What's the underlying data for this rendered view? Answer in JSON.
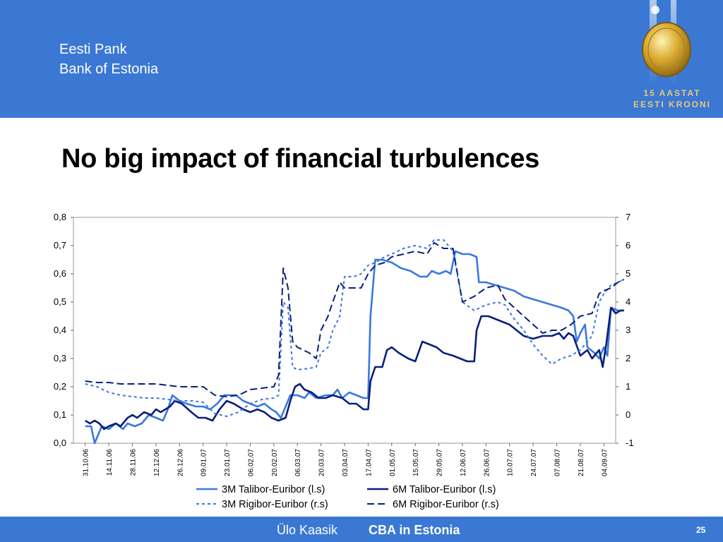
{
  "header": {
    "bank_name_et": "Eesti Pank",
    "bank_name_en": "Bank of Estonia",
    "logo_line1": "15 AASTAT",
    "logo_line2": "EESTI KROONI",
    "background_color": "#3a78d4"
  },
  "slide_title": "No big impact of financial turbulences",
  "footer": {
    "author": "Ülo Kaasik",
    "presentation_title": "CBA in Estonia",
    "page_number": "25"
  },
  "chart_data": {
    "type": "line",
    "title": "",
    "xlabel": "",
    "ylabel_left": "",
    "ylabel_right": "",
    "y_left_lim": [
      0.0,
      0.8
    ],
    "y_left_ticks": [
      "0,0",
      "0,1",
      "0,2",
      "0,3",
      "0,4",
      "0,5",
      "0,6",
      "0,7",
      "0,8"
    ],
    "y_right_lim": [
      -1,
      7
    ],
    "y_right_ticks": [
      "-1",
      "0",
      "1",
      "2",
      "3",
      "4",
      "5",
      "6",
      "7"
    ],
    "x_tick_labels": [
      "31.10.06",
      "14.11.06",
      "28.11.06",
      "12.12.06",
      "26.12.06",
      "09.01.07",
      "23.01.07",
      "06.02.07",
      "20.02.07",
      "06.03.07",
      "20.03.07",
      "03.04.07",
      "17.04.07",
      "01.05.07",
      "15.05.07",
      "29.05.07",
      "12.06.07",
      "26.06.07",
      "10.07.07",
      "24.07.07",
      "07.08.07",
      "21.08.07",
      "04.09.07"
    ],
    "grid": false,
    "legend_position": "bottom",
    "series": [
      {
        "name": "3M Talibor-Euribor (l.s)",
        "axis": "left",
        "color": "#3a78e0",
        "style": "solid",
        "points": [
          [
            0,
            0.06
          ],
          [
            0.25,
            0.06
          ],
          [
            0.4,
            0.0
          ],
          [
            0.7,
            0.06
          ],
          [
            1,
            0.05
          ],
          [
            1.3,
            0.07
          ],
          [
            1.6,
            0.05
          ],
          [
            1.8,
            0.07
          ],
          [
            2.1,
            0.06
          ],
          [
            2.4,
            0.07
          ],
          [
            2.7,
            0.1
          ],
          [
            3,
            0.09
          ],
          [
            3.3,
            0.08
          ],
          [
            3.5,
            0.12
          ],
          [
            3.7,
            0.17
          ],
          [
            4,
            0.15
          ],
          [
            4.3,
            0.14
          ],
          [
            4.7,
            0.13
          ],
          [
            5,
            0.13
          ],
          [
            5.3,
            0.12
          ],
          [
            5.6,
            0.14
          ],
          [
            5.9,
            0.17
          ],
          [
            6.1,
            0.17
          ],
          [
            6.4,
            0.17
          ],
          [
            6.7,
            0.15
          ],
          [
            7,
            0.14
          ],
          [
            7.3,
            0.13
          ],
          [
            7.6,
            0.14
          ],
          [
            7.9,
            0.12
          ],
          [
            8.1,
            0.11
          ],
          [
            8.3,
            0.09
          ],
          [
            8.5,
            0.13
          ],
          [
            8.7,
            0.17
          ],
          [
            9,
            0.17
          ],
          [
            9.3,
            0.16
          ],
          [
            9.5,
            0.18
          ],
          [
            9.8,
            0.16
          ],
          [
            10.2,
            0.17
          ],
          [
            10.5,
            0.17
          ],
          [
            10.7,
            0.19
          ],
          [
            10.9,
            0.16
          ],
          [
            11.2,
            0.18
          ],
          [
            11.5,
            0.17
          ],
          [
            11.8,
            0.16
          ],
          [
            12,
            0.16
          ],
          [
            12.1,
            0.45
          ],
          [
            12.3,
            0.65
          ],
          [
            12.6,
            0.65
          ],
          [
            13,
            0.64
          ],
          [
            13.4,
            0.62
          ],
          [
            13.8,
            0.61
          ],
          [
            14.2,
            0.59
          ],
          [
            14.5,
            0.59
          ],
          [
            14.7,
            0.61
          ],
          [
            15,
            0.6
          ],
          [
            15.3,
            0.61
          ],
          [
            15.5,
            0.6
          ],
          [
            15.7,
            0.68
          ],
          [
            16,
            0.67
          ],
          [
            16.3,
            0.67
          ],
          [
            16.6,
            0.66
          ],
          [
            16.7,
            0.57
          ],
          [
            17,
            0.57
          ],
          [
            17.4,
            0.56
          ],
          [
            17.8,
            0.55
          ],
          [
            18.2,
            0.54
          ],
          [
            18.6,
            0.52
          ],
          [
            19,
            0.51
          ],
          [
            19.4,
            0.5
          ],
          [
            19.8,
            0.49
          ],
          [
            20.2,
            0.48
          ],
          [
            20.5,
            0.47
          ],
          [
            20.7,
            0.45
          ],
          [
            20.85,
            0.36
          ],
          [
            21,
            0.39
          ],
          [
            21.2,
            0.42
          ],
          [
            21.3,
            0.34
          ],
          [
            21.6,
            0.32
          ],
          [
            21.8,
            0.3
          ],
          [
            22,
            0.34
          ],
          [
            22.15,
            0.31
          ],
          [
            22.3,
            0.48
          ],
          [
            22.6,
            0.47
          ],
          [
            22.85,
            0.47
          ]
        ]
      },
      {
        "name": "6M Talibor-Euribor (l.s)",
        "axis": "left",
        "color": "#0a1f7a",
        "style": "solid",
        "points": [
          [
            0,
            0.08
          ],
          [
            0.2,
            0.07
          ],
          [
            0.4,
            0.08
          ],
          [
            0.6,
            0.07
          ],
          [
            0.8,
            0.05
          ],
          [
            1,
            0.06
          ],
          [
            1.3,
            0.07
          ],
          [
            1.5,
            0.06
          ],
          [
            1.8,
            0.09
          ],
          [
            2,
            0.1
          ],
          [
            2.2,
            0.09
          ],
          [
            2.5,
            0.11
          ],
          [
            2.8,
            0.1
          ],
          [
            3,
            0.12
          ],
          [
            3.2,
            0.11
          ],
          [
            3.4,
            0.12
          ],
          [
            3.6,
            0.13
          ],
          [
            3.8,
            0.15
          ],
          [
            4.1,
            0.14
          ],
          [
            4.5,
            0.11
          ],
          [
            4.8,
            0.09
          ],
          [
            5.1,
            0.09
          ],
          [
            5.4,
            0.08
          ],
          [
            5.7,
            0.12
          ],
          [
            6,
            0.15
          ],
          [
            6.3,
            0.14
          ],
          [
            6.7,
            0.12
          ],
          [
            7,
            0.11
          ],
          [
            7.3,
            0.12
          ],
          [
            7.6,
            0.11
          ],
          [
            7.9,
            0.09
          ],
          [
            8.2,
            0.08
          ],
          [
            8.5,
            0.09
          ],
          [
            8.7,
            0.15
          ],
          [
            8.9,
            0.2
          ],
          [
            9.1,
            0.21
          ],
          [
            9.3,
            0.19
          ],
          [
            9.6,
            0.18
          ],
          [
            9.9,
            0.16
          ],
          [
            10.2,
            0.16
          ],
          [
            10.5,
            0.17
          ],
          [
            10.9,
            0.16
          ],
          [
            11.2,
            0.14
          ],
          [
            11.5,
            0.14
          ],
          [
            11.8,
            0.12
          ],
          [
            12,
            0.12
          ],
          [
            12.1,
            0.22
          ],
          [
            12.3,
            0.27
          ],
          [
            12.6,
            0.27
          ],
          [
            12.8,
            0.33
          ],
          [
            13,
            0.34
          ],
          [
            13.3,
            0.32
          ],
          [
            13.7,
            0.3
          ],
          [
            14,
            0.29
          ],
          [
            14.3,
            0.36
          ],
          [
            14.6,
            0.35
          ],
          [
            14.9,
            0.34
          ],
          [
            15.2,
            0.32
          ],
          [
            15.6,
            0.31
          ],
          [
            15.9,
            0.3
          ],
          [
            16.2,
            0.29
          ],
          [
            16.5,
            0.29
          ],
          [
            16.6,
            0.4
          ],
          [
            16.8,
            0.45
          ],
          [
            17.1,
            0.45
          ],
          [
            17.4,
            0.44
          ],
          [
            17.7,
            0.43
          ],
          [
            18,
            0.42
          ],
          [
            18.3,
            0.4
          ],
          [
            18.6,
            0.38
          ],
          [
            19,
            0.37
          ],
          [
            19.4,
            0.38
          ],
          [
            19.8,
            0.38
          ],
          [
            20.1,
            0.39
          ],
          [
            20.3,
            0.37
          ],
          [
            20.5,
            0.39
          ],
          [
            20.7,
            0.38
          ],
          [
            21,
            0.31
          ],
          [
            21.3,
            0.33
          ],
          [
            21.5,
            0.3
          ],
          [
            21.8,
            0.33
          ],
          [
            21.95,
            0.27
          ],
          [
            22.1,
            0.35
          ],
          [
            22.3,
            0.48
          ],
          [
            22.5,
            0.46
          ],
          [
            22.7,
            0.47
          ],
          [
            22.85,
            0.47
          ]
        ]
      },
      {
        "name": "3M Rigibor-Euribor (r.s)",
        "axis": "right",
        "color": "#3a78e0",
        "style": "dotted",
        "points": [
          [
            0,
            1.1
          ],
          [
            0.5,
            1.0
          ],
          [
            1,
            0.8
          ],
          [
            1.5,
            0.7
          ],
          [
            2,
            0.65
          ],
          [
            2.5,
            0.6
          ],
          [
            3,
            0.6
          ],
          [
            3.5,
            0.55
          ],
          [
            4,
            0.5
          ],
          [
            4.5,
            0.5
          ],
          [
            5,
            0.45
          ],
          [
            5.5,
            0.05
          ],
          [
            6,
            -0.05
          ],
          [
            6.5,
            0.1
          ],
          [
            7,
            0.4
          ],
          [
            7.5,
            0.55
          ],
          [
            8,
            0.6
          ],
          [
            8.2,
            0.7
          ],
          [
            8.4,
            4.0
          ],
          [
            8.6,
            3.8
          ],
          [
            8.8,
            1.7
          ],
          [
            9,
            1.6
          ],
          [
            9.5,
            1.65
          ],
          [
            9.8,
            1.7
          ],
          [
            10,
            2.2
          ],
          [
            10.3,
            2.4
          ],
          [
            10.5,
            3.0
          ],
          [
            10.8,
            3.5
          ],
          [
            11,
            4.9
          ],
          [
            11.4,
            4.9
          ],
          [
            11.7,
            5.0
          ],
          [
            12,
            5.3
          ],
          [
            12.3,
            5.4
          ],
          [
            12.7,
            5.6
          ],
          [
            13,
            5.7
          ],
          [
            13.5,
            5.9
          ],
          [
            14,
            6.0
          ],
          [
            14.5,
            5.9
          ],
          [
            14.8,
            6.2
          ],
          [
            15.2,
            6.2
          ],
          [
            15.6,
            5.8
          ],
          [
            16,
            4.0
          ],
          [
            16.5,
            3.7
          ],
          [
            17,
            3.9
          ],
          [
            17.5,
            4.0
          ],
          [
            17.8,
            3.9
          ],
          [
            18.2,
            3.4
          ],
          [
            18.6,
            3.0
          ],
          [
            19,
            2.5
          ],
          [
            19.4,
            2.1
          ],
          [
            19.8,
            1.8
          ],
          [
            20.2,
            2.0
          ],
          [
            20.6,
            2.1
          ],
          [
            21,
            2.3
          ],
          [
            21.5,
            2.8
          ],
          [
            21.8,
            4.0
          ],
          [
            22,
            4.3
          ],
          [
            22.3,
            4.6
          ],
          [
            22.6,
            4.7
          ],
          [
            22.85,
            4.8
          ]
        ]
      },
      {
        "name": "6M Rigibor-Euribor (r.s)",
        "axis": "right",
        "color": "#0a1f7a",
        "style": "dashed",
        "points": [
          [
            0,
            1.2
          ],
          [
            0.5,
            1.15
          ],
          [
            1,
            1.15
          ],
          [
            1.5,
            1.1
          ],
          [
            2,
            1.1
          ],
          [
            2.5,
            1.1
          ],
          [
            3,
            1.1
          ],
          [
            3.5,
            1.05
          ],
          [
            4,
            1.0
          ],
          [
            4.5,
            1.0
          ],
          [
            5,
            1.0
          ],
          [
            5.5,
            0.7
          ],
          [
            6,
            0.65
          ],
          [
            6.5,
            0.7
          ],
          [
            7,
            0.9
          ],
          [
            7.5,
            0.95
          ],
          [
            8,
            1.0
          ],
          [
            8.2,
            1.4
          ],
          [
            8.4,
            5.2
          ],
          [
            8.6,
            4.5
          ],
          [
            8.8,
            2.6
          ],
          [
            9,
            2.4
          ],
          [
            9.5,
            2.2
          ],
          [
            9.8,
            2.0
          ],
          [
            10,
            3.0
          ],
          [
            10.3,
            3.5
          ],
          [
            10.5,
            4.0
          ],
          [
            10.8,
            4.7
          ],
          [
            11,
            4.5
          ],
          [
            11.4,
            4.5
          ],
          [
            11.7,
            4.5
          ],
          [
            12,
            5.0
          ],
          [
            12.3,
            5.3
          ],
          [
            12.7,
            5.4
          ],
          [
            13,
            5.6
          ],
          [
            13.5,
            5.7
          ],
          [
            14,
            5.8
          ],
          [
            14.5,
            5.7
          ],
          [
            14.8,
            6.1
          ],
          [
            15.2,
            5.9
          ],
          [
            15.6,
            5.9
          ],
          [
            16,
            4.0
          ],
          [
            16.5,
            4.2
          ],
          [
            17,
            4.5
          ],
          [
            17.5,
            4.6
          ],
          [
            17.8,
            4.1
          ],
          [
            18.2,
            3.8
          ],
          [
            18.6,
            3.5
          ],
          [
            19,
            3.2
          ],
          [
            19.4,
            2.9
          ],
          [
            19.8,
            3.0
          ],
          [
            20.2,
            3.0
          ],
          [
            20.6,
            3.2
          ],
          [
            21,
            3.5
          ],
          [
            21.5,
            3.6
          ],
          [
            21.8,
            4.3
          ],
          [
            22,
            4.4
          ],
          [
            22.3,
            4.5
          ],
          [
            22.6,
            4.7
          ],
          [
            22.85,
            4.8
          ]
        ]
      }
    ]
  }
}
